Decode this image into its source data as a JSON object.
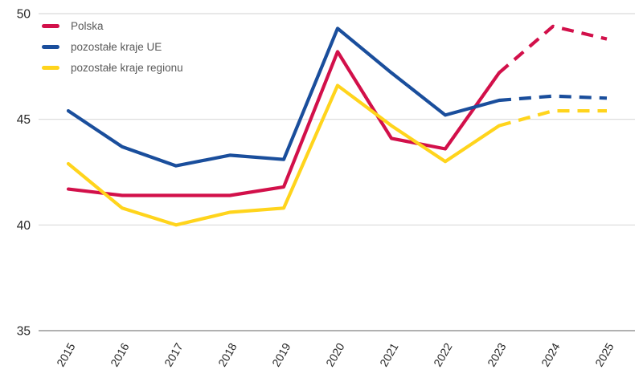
{
  "chart_data": {
    "type": "line",
    "title": "",
    "xlabel": "",
    "ylabel": "",
    "categories": [
      "2015",
      "2016",
      "2017",
      "2018",
      "2019",
      "2020",
      "2021",
      "2022",
      "2023",
      "2024",
      "2025"
    ],
    "series": [
      {
        "name": "Polska",
        "color": "#D2104A",
        "values": [
          41.7,
          41.4,
          41.4,
          41.4,
          41.8,
          48.2,
          44.1,
          43.6,
          47.2,
          49.4,
          48.8
        ],
        "dashed_from_index": 8
      },
      {
        "name": "pozostałe kraje UE",
        "color": "#1A4E9C",
        "values": [
          45.4,
          43.7,
          42.8,
          43.3,
          43.1,
          49.3,
          47.2,
          45.2,
          45.9,
          46.1,
          46.0
        ],
        "dashed_from_index": 8
      },
      {
        "name": "pozostałe kraje regionu",
        "color": "#FFD41C",
        "values": [
          42.9,
          40.8,
          40.0,
          40.6,
          40.8,
          46.6,
          44.7,
          43.0,
          44.7,
          45.4,
          45.4
        ],
        "dashed_from_index": 8
      }
    ],
    "ylim": [
      35,
      50
    ],
    "yticks": [
      35,
      40,
      45,
      50
    ],
    "grid": "horizontal-only",
    "legend_position": "top-left",
    "note": "dashed segments from 2023 onward are forecast values"
  },
  "colors": {
    "background": "#FFFFFF",
    "gridline": "#D9D9D9",
    "axis_line": "#A6A6A6",
    "tick_text": "#262626",
    "legend_text": "#595959"
  }
}
